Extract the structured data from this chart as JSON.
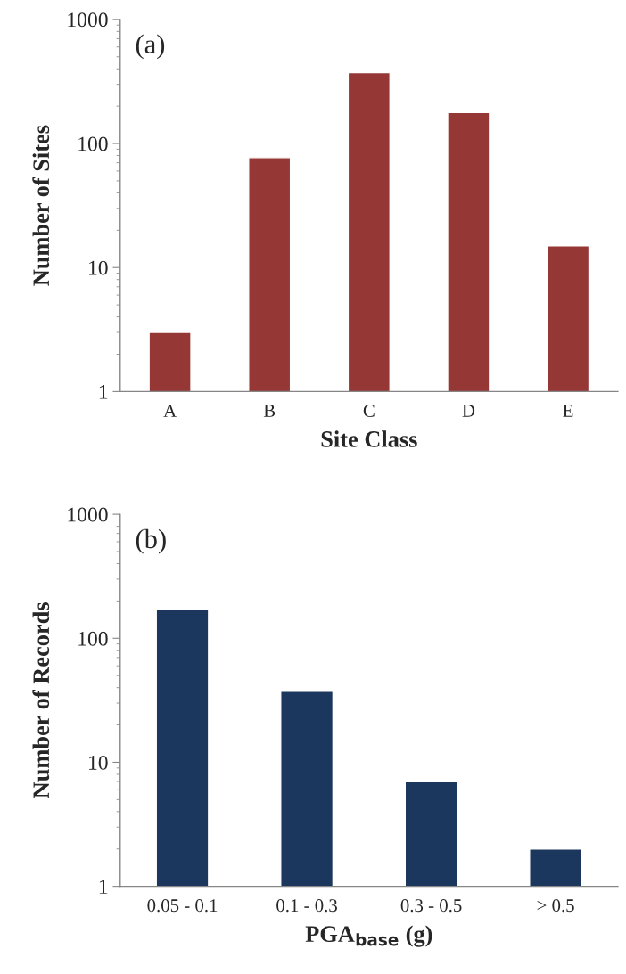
{
  "chart_data": [
    {
      "type": "bar",
      "xlabel": "Site Class",
      "ylabel": "Number of Sites",
      "annotations": [
        "(a)"
      ],
      "categories": [
        "A",
        "B",
        "C",
        "D",
        "E"
      ],
      "series": [
        {
          "color": "#953735",
          "values": [
            3,
            77,
            373,
            178,
            15
          ]
        }
      ],
      "log": "y",
      "ylim": [
        1,
        1000
      ],
      "yticks": [
        1,
        10,
        100,
        1000
      ],
      "grid": false
    },
    {
      "type": "bar",
      "xlabel": "PGA$_{base}$ (g)",
      "ylabel": "Number of Records",
      "annotations": [
        "(b)"
      ],
      "categories": [
        "0.05 - 0.1",
        "0.1 - 0.3",
        "0.3 - 0.5",
        "> 0.5"
      ],
      "series": [
        {
          "color": "#1b375e",
          "values": [
            170,
            38,
            7,
            2
          ]
        }
      ],
      "log": "y",
      "ylim": [
        1,
        1000
      ],
      "yticks": [
        1,
        10,
        100,
        1000
      ],
      "grid": false
    }
  ]
}
